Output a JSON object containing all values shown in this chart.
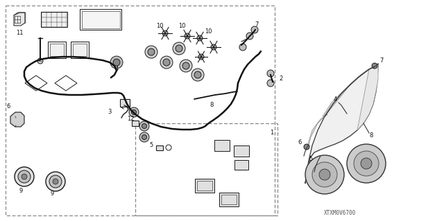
{
  "bg_color": "#ffffff",
  "fig_width": 6.4,
  "fig_height": 3.19,
  "dpi": 100,
  "watermark": "XTXM0V6700",
  "line_color": "#1a1a1a",
  "label_fontsize": 6.0
}
